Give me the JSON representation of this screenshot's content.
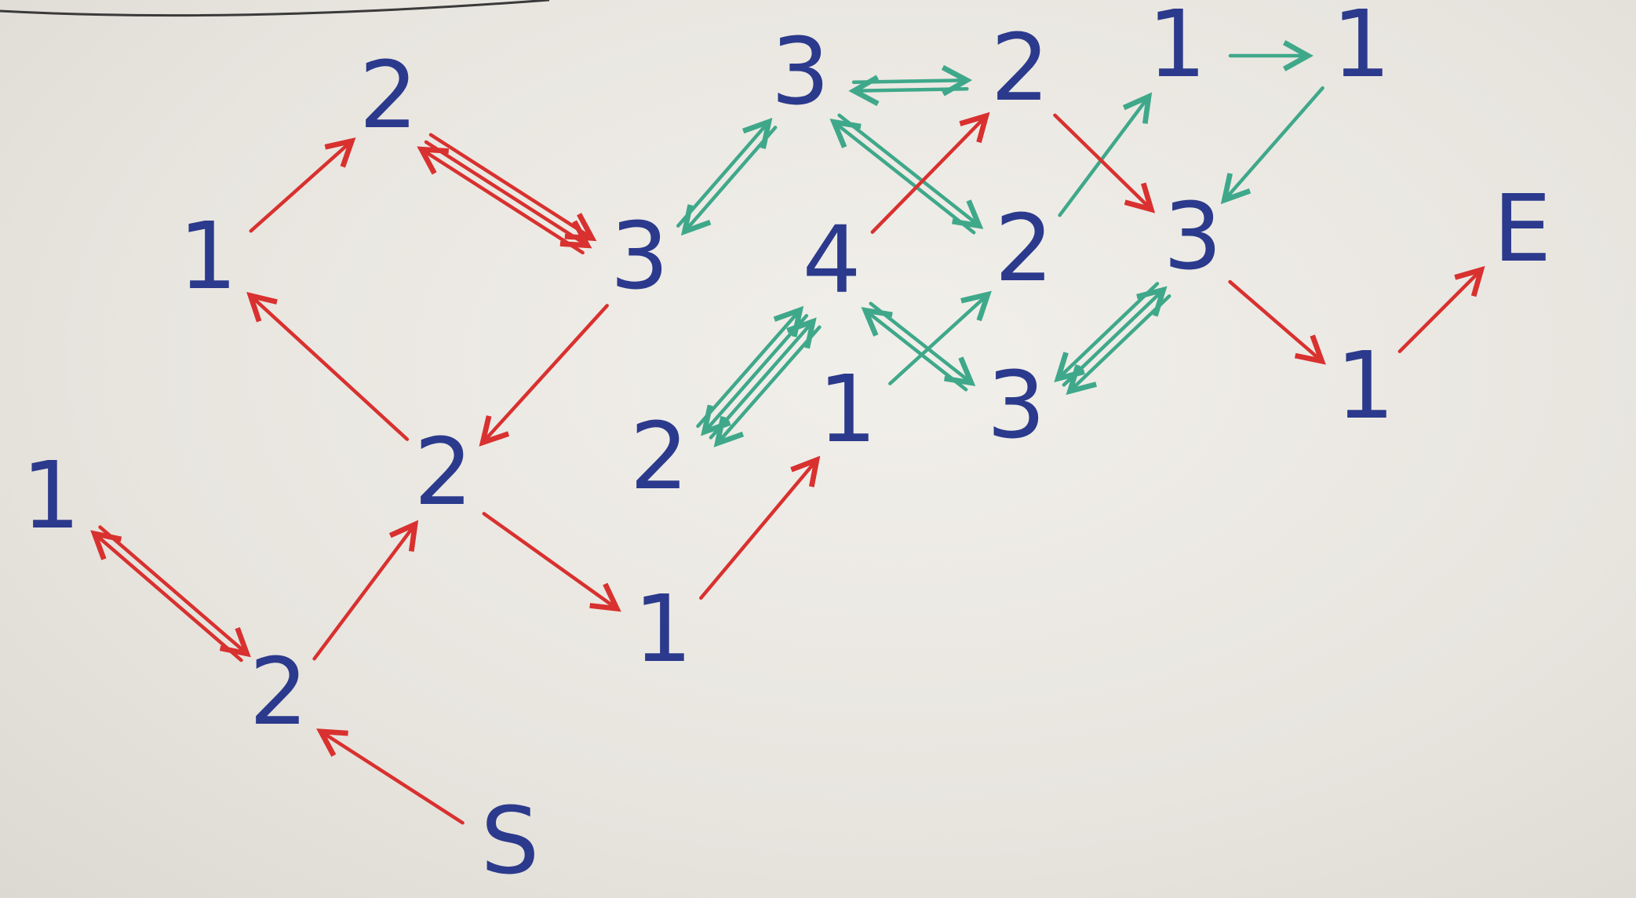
{
  "colors": {
    "node_text": "#2b3a8c",
    "red_edge": "#d8312f",
    "green_edge": "#3fa88a",
    "top_line": "#3a3a3a"
  },
  "nodes": [
    {
      "id": "S",
      "label": "S"
    },
    {
      "id": "A",
      "label": "2"
    },
    {
      "id": "B",
      "label": "1"
    },
    {
      "id": "C",
      "label": "2"
    },
    {
      "id": "D",
      "label": "1"
    },
    {
      "id": "F",
      "label": "2"
    },
    {
      "id": "G",
      "label": "3"
    },
    {
      "id": "H",
      "label": "1"
    },
    {
      "id": "I",
      "label": "1"
    },
    {
      "id": "J",
      "label": "2"
    },
    {
      "id": "K",
      "label": "3"
    },
    {
      "id": "L",
      "label": "4"
    },
    {
      "id": "M",
      "label": "2"
    },
    {
      "id": "N",
      "label": "2"
    },
    {
      "id": "O",
      "label": "3"
    },
    {
      "id": "P",
      "label": "1"
    },
    {
      "id": "Q",
      "label": "1"
    },
    {
      "id": "R",
      "label": "3"
    },
    {
      "id": "T",
      "label": "1"
    },
    {
      "id": "E",
      "label": "E"
    }
  ],
  "edges": [
    {
      "from": "S",
      "to": "A",
      "color": "red"
    },
    {
      "from": "A",
      "to": "B",
      "color": "red"
    },
    {
      "from": "B",
      "to": "A",
      "color": "red"
    },
    {
      "from": "A",
      "to": "C",
      "color": "red"
    },
    {
      "from": "C",
      "to": "D",
      "color": "red"
    },
    {
      "from": "D",
      "to": "F",
      "color": "red"
    },
    {
      "from": "F",
      "to": "G",
      "color": "red"
    },
    {
      "from": "F",
      "to": "G",
      "color": "red"
    },
    {
      "from": "G",
      "to": "F",
      "color": "red"
    },
    {
      "from": "G",
      "to": "C",
      "color": "red"
    },
    {
      "from": "C",
      "to": "H",
      "color": "red"
    },
    {
      "from": "H",
      "to": "I",
      "color": "red"
    },
    {
      "from": "G",
      "to": "K",
      "color": "green"
    },
    {
      "from": "K",
      "to": "G",
      "color": "green"
    },
    {
      "from": "K",
      "to": "M",
      "color": "green"
    },
    {
      "from": "M",
      "to": "K",
      "color": "green"
    },
    {
      "from": "K",
      "to": "N",
      "color": "green"
    },
    {
      "from": "N",
      "to": "K",
      "color": "green"
    },
    {
      "from": "J",
      "to": "L",
      "color": "green"
    },
    {
      "from": "L",
      "to": "J",
      "color": "green"
    },
    {
      "from": "J",
      "to": "L",
      "color": "green"
    },
    {
      "from": "L",
      "to": "J",
      "color": "green"
    },
    {
      "from": "L",
      "to": "M",
      "color": "red"
    },
    {
      "from": "L",
      "to": "O",
      "color": "green"
    },
    {
      "from": "O",
      "to": "L",
      "color": "green"
    },
    {
      "from": "I",
      "to": "N",
      "color": "green"
    },
    {
      "from": "N",
      "to": "P",
      "color": "green"
    },
    {
      "from": "P",
      "to": "Q",
      "color": "green"
    },
    {
      "from": "Q",
      "to": "R",
      "color": "green"
    },
    {
      "from": "M",
      "to": "R",
      "color": "red"
    },
    {
      "from": "R",
      "to": "O",
      "color": "green"
    },
    {
      "from": "O",
      "to": "R",
      "color": "green"
    },
    {
      "from": "R",
      "to": "O",
      "color": "green"
    },
    {
      "from": "R",
      "to": "T",
      "color": "red"
    },
    {
      "from": "T",
      "to": "E",
      "color": "red"
    }
  ]
}
